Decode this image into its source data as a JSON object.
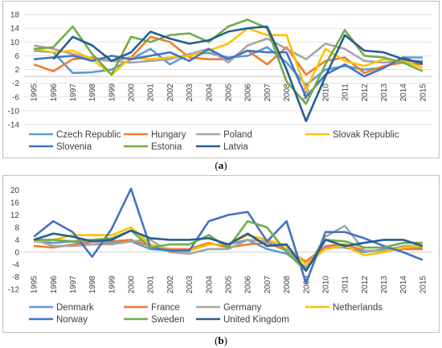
{
  "chart_data": [
    {
      "type": "line",
      "caption": "a",
      "x": [
        "1995",
        "1996",
        "1997",
        "1998",
        "1999",
        "2000",
        "2001",
        "2002",
        "2003",
        "2004",
        "2005",
        "2006",
        "2007",
        "2008",
        "2009",
        "2010",
        "2011",
        "2012",
        "2013",
        "2014",
        "2015"
      ],
      "ylim": [
        -14,
        18
      ],
      "yticks": [
        18,
        14,
        10,
        6,
        2,
        -2,
        -6,
        -10,
        -14
      ],
      "grid": true,
      "legend": "bottom",
      "series": [
        {
          "name": "Czech Republic",
          "color": "#5b9bd5",
          "values": [
            7.5,
            7.0,
            1.0,
            1.2,
            2.0,
            5.0,
            8.0,
            3.5,
            6.5,
            6.8,
            5.5,
            6.0,
            8.5,
            4.0,
            -2.5,
            2.0,
            3.0,
            2.0,
            2.5,
            5.5,
            5.5
          ]
        },
        {
          "name": "Hungary",
          "color": "#ed7d31",
          "values": [
            3.5,
            1.5,
            5.0,
            5.5,
            4.5,
            5.5,
            11.5,
            10.0,
            5.5,
            5.0,
            5.0,
            7.5,
            3.5,
            8.5,
            0.5,
            4.5,
            5.5,
            1.0,
            3.0,
            4.0,
            3.5
          ]
        },
        {
          "name": "Poland",
          "color": "#a5a5a5",
          "values": [
            9.0,
            8.0,
            6.5,
            5.0,
            4.5,
            4.0,
            4.5,
            5.0,
            6.5,
            8.0,
            4.0,
            9.0,
            11.0,
            8.0,
            5.0,
            9.5,
            8.0,
            4.5,
            4.0,
            4.5,
            4.5
          ]
        },
        {
          "name": "Slovak Republic",
          "color": "#ffc000",
          "values": [
            8.0,
            7.0,
            7.5,
            5.0,
            0.5,
            5.5,
            5.0,
            5.5,
            6.0,
            7.5,
            9.5,
            14.0,
            12.0,
            12.0,
            -4.0,
            8.0,
            4.5,
            3.0,
            5.0,
            4.5,
            2.5
          ]
        },
        {
          "name": "Slovenia",
          "color": "#4472c4",
          "values": [
            5.0,
            5.5,
            6.0,
            4.5,
            6.0,
            5.0,
            6.0,
            7.0,
            4.5,
            8.0,
            5.0,
            7.5,
            7.0,
            7.0,
            -6.0,
            0.5,
            3.5,
            0.0,
            2.5,
            5.5,
            3.5
          ]
        },
        {
          "name": "Estonia",
          "color": "#70ad47",
          "values": [
            8.0,
            8.5,
            14.5,
            6.5,
            0.5,
            11.5,
            10.0,
            12.0,
            12.5,
            10.0,
            14.5,
            16.5,
            14.0,
            -1.5,
            -8.0,
            3.5,
            13.5,
            6.0,
            5.5,
            4.0,
            1.5
          ]
        },
        {
          "name": "Latvia",
          "color": "#255e91",
          "values": [
            null,
            5.0,
            11.5,
            9.0,
            4.5,
            7.0,
            13.0,
            11.0,
            9.5,
            10.5,
            13.0,
            14.0,
            14.5,
            2.0,
            -13.0,
            0.0,
            12.0,
            7.5,
            7.0,
            5.0,
            4.0
          ]
        }
      ]
    },
    {
      "type": "line",
      "caption": "b",
      "x": [
        "1995",
        "1996",
        "1997",
        "1998",
        "1999",
        "2000",
        "2001",
        "2002",
        "2003",
        "2004",
        "2005",
        "2006",
        "2007",
        "2008",
        "2009",
        "2010",
        "2011",
        "2012",
        "2013",
        "2014",
        "2015"
      ],
      "ylim": [
        -12,
        22
      ],
      "yticks": [
        20,
        16,
        12,
        8,
        4,
        0,
        -4,
        -8,
        -12
      ],
      "grid": false,
      "legend": "bottom",
      "series": [
        {
          "name": "Denmark",
          "color": "#5b9bd5",
          "values": [
            3.5,
            3.0,
            3.5,
            2.5,
            3.0,
            3.5,
            1.0,
            0.5,
            0.5,
            2.5,
            2.5,
            4.0,
            1.0,
            -0.5,
            -5.0,
            1.5,
            1.5,
            0.0,
            1.0,
            1.5,
            1.5
          ]
        },
        {
          "name": "France",
          "color": "#ed7d31",
          "values": [
            2.0,
            1.5,
            2.5,
            3.5,
            3.5,
            4.0,
            2.0,
            1.0,
            1.0,
            3.0,
            1.5,
            2.5,
            3.0,
            0.5,
            -3.0,
            2.0,
            2.5,
            0.5,
            0.5,
            1.0,
            1.0
          ]
        },
        {
          "name": "Germany",
          "color": "#a5a5a5",
          "values": [
            4.0,
            2.0,
            2.0,
            2.5,
            2.5,
            3.5,
            4.0,
            0.0,
            -0.5,
            1.0,
            1.0,
            4.0,
            3.5,
            1.0,
            -5.5,
            5.0,
            8.5,
            0.5,
            0.5,
            2.0,
            2.0
          ]
        },
        {
          "name": "Netherlands",
          "color": "#ffc000",
          "values": [
            3.5,
            4.0,
            5.5,
            5.5,
            5.5,
            8.0,
            2.5,
            0.5,
            0.5,
            2.5,
            2.5,
            5.5,
            4.0,
            2.0,
            -4.0,
            1.0,
            2.0,
            -1.0,
            0.0,
            1.5,
            2.0
          ]
        },
        {
          "name": "Norway",
          "color": "#4472c4",
          "values": [
            5.0,
            10.0,
            6.5,
            -1.5,
            7.5,
            20.5,
            1.5,
            0.5,
            0.5,
            10.0,
            12.0,
            13.0,
            3.5,
            10.0,
            -10.0,
            6.5,
            6.5,
            4.5,
            2.0,
            0.0,
            -2.5
          ]
        },
        {
          "name": "Sweden",
          "color": "#70ad47",
          "values": [
            4.0,
            4.0,
            3.5,
            4.0,
            4.5,
            7.0,
            1.5,
            2.5,
            2.5,
            5.5,
            1.5,
            10.0,
            8.0,
            0.0,
            -6.0,
            4.0,
            3.5,
            1.5,
            1.5,
            3.0,
            3.0
          ]
        },
        {
          "name": "United Kingdom",
          "color": "#255e91",
          "values": [
            4.0,
            6.0,
            5.0,
            3.5,
            4.0,
            7.0,
            4.5,
            4.0,
            4.0,
            4.5,
            2.5,
            6.0,
            2.0,
            2.5,
            -6.0,
            4.0,
            2.0,
            3.0,
            4.0,
            4.0,
            2.0
          ]
        }
      ]
    }
  ]
}
